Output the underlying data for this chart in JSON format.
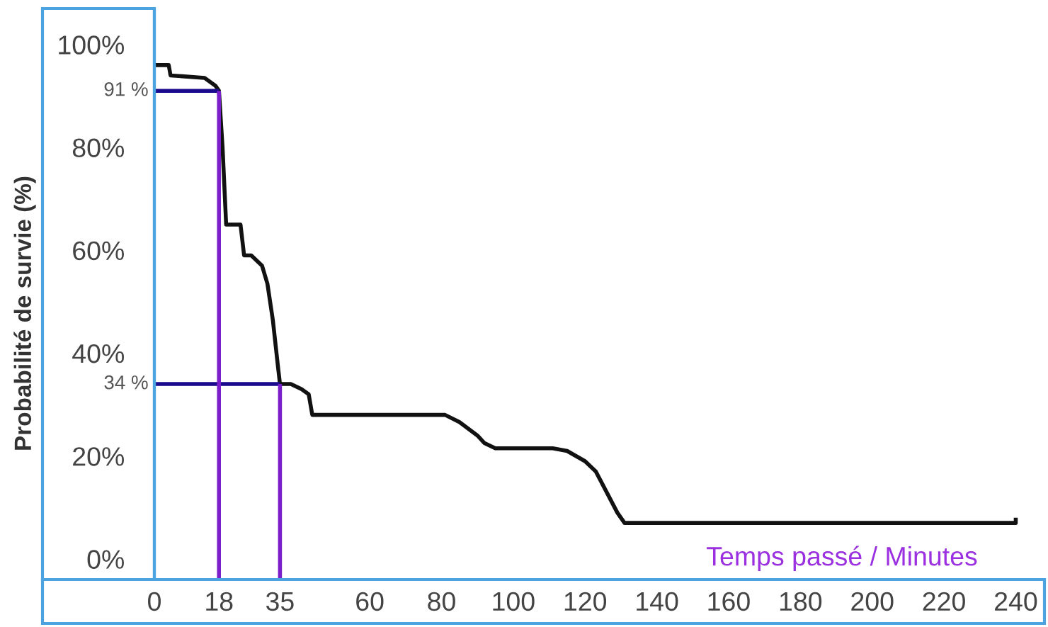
{
  "chart_data": {
    "type": "line",
    "xlabel": "Temps passé / Minutes",
    "ylabel": "Probabilité de survie (%)",
    "xlim": [
      0,
      248
    ],
    "ylim": [
      -4,
      107
    ],
    "xticks": [
      0,
      18,
      35,
      60,
      80,
      100,
      120,
      140,
      160,
      180,
      200,
      220,
      240
    ],
    "yticks": [
      {
        "value": 0,
        "label": "0%"
      },
      {
        "value": 20,
        "label": "20%"
      },
      {
        "value": 40,
        "label": "40%"
      },
      {
        "value": 60,
        "label": "60%"
      },
      {
        "value": 80,
        "label": "80%"
      },
      {
        "value": 100,
        "label": "100%"
      }
    ],
    "grid": false,
    "legend": false,
    "marker": "none",
    "line_style": "solid",
    "series": [
      {
        "color": "#111111",
        "x": [
          0,
          4,
          4.5,
          14,
          17,
          18,
          19,
          20,
          24,
          25,
          27,
          30,
          31.5,
          33,
          34.5,
          35,
          38,
          41,
          43,
          44,
          81,
          85,
          90,
          92,
          95,
          111,
          115,
          120,
          123,
          129,
          131,
          240,
          240
        ],
        "values": [
          96,
          96,
          94,
          93.5,
          92,
          91,
          80,
          65,
          65,
          59,
          59,
          57,
          53.5,
          46.5,
          37,
          34,
          34,
          33,
          32,
          28,
          28,
          26.6,
          24,
          22.5,
          21.5,
          21.5,
          21,
          19,
          17,
          9,
          7,
          7,
          8
        ]
      },
      {
        "color": "#1a0a8c",
        "x": [
          0,
          18
        ],
        "values": [
          91,
          91
        ]
      },
      {
        "color": "#1a0a8c",
        "x": [
          0,
          35
        ],
        "values": [
          34,
          34
        ]
      },
      {
        "color": "#7a1fc9",
        "x": [
          18,
          18
        ],
        "values": [
          -4,
          91
        ]
      },
      {
        "color": "#7a1fc9",
        "x": [
          35,
          35
        ],
        "values": [
          -4,
          34
        ]
      }
    ],
    "annotations": [
      {
        "text": "91 %",
        "x": 0,
        "y": 91
      },
      {
        "text": "34 %",
        "x": 0,
        "y": 34
      }
    ]
  }
}
